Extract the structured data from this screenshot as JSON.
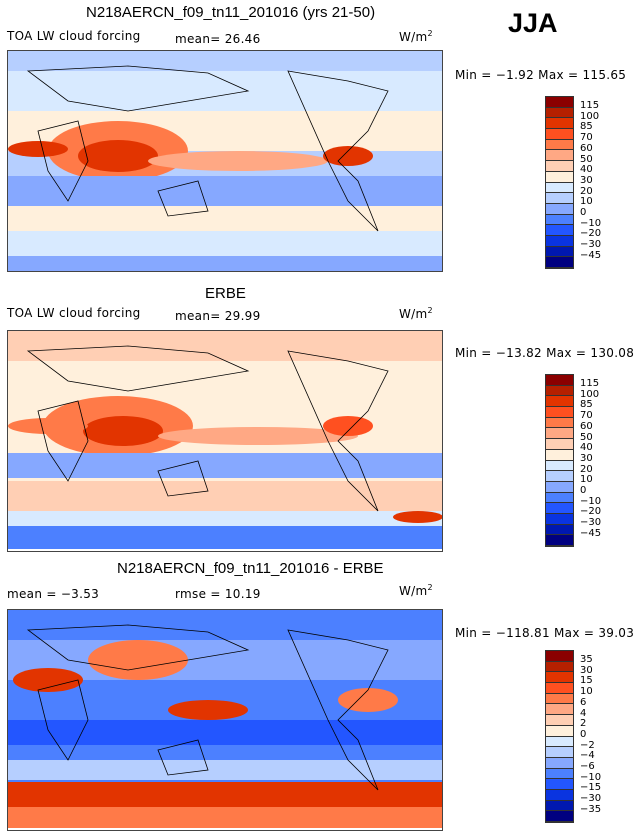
{
  "season": "JJA",
  "units": "W/m",
  "units_sup": "2",
  "panels": [
    {
      "title": "N218AERCN_f09_tn11_201016 (yrs 21-50)",
      "variable": "TOA LW cloud forcing",
      "stat1": "mean=  26.46",
      "stat2": "",
      "minmax": "Min =  −1.92 Max = 115.65",
      "levels": [
        "115",
        "100",
        "85",
        "70",
        "60",
        "50",
        "40",
        "30",
        "20",
        "10",
        "0",
        "−10",
        "−20",
        "−30",
        "−45"
      ]
    },
    {
      "title": "ERBE",
      "variable": "TOA LW cloud forcing",
      "stat1": "mean=  29.99",
      "stat2": "",
      "minmax": "Min = −13.82 Max = 130.08",
      "levels": [
        "115",
        "100",
        "85",
        "70",
        "60",
        "50",
        "40",
        "30",
        "20",
        "10",
        "0",
        "−10",
        "−20",
        "−30",
        "−45"
      ]
    },
    {
      "title": "N218AERCN_f09_tn11_201016 - ERBE",
      "variable": "",
      "stat1": "mean =  −3.53",
      "stat2": "rmse =  10.19",
      "minmax": "Min = −118.81 Max =  39.03",
      "levels": [
        "35",
        "30",
        "15",
        "10",
        "6",
        "4",
        "2",
        "0",
        "−2",
        "−4",
        "−6",
        "−10",
        "−15",
        "−30",
        "−35"
      ]
    }
  ],
  "colors": [
    "#8b0000",
    "#b52000",
    "#e23400",
    "#ff5020",
    "#ff7a48",
    "#ffa884",
    "#ffcfb4",
    "#fff0dc",
    "#d8eaff",
    "#b6cfff",
    "#86a8ff",
    "#4c80ff",
    "#2356ff",
    "#0a34e0",
    "#0018b0",
    "#000080"
  ]
}
